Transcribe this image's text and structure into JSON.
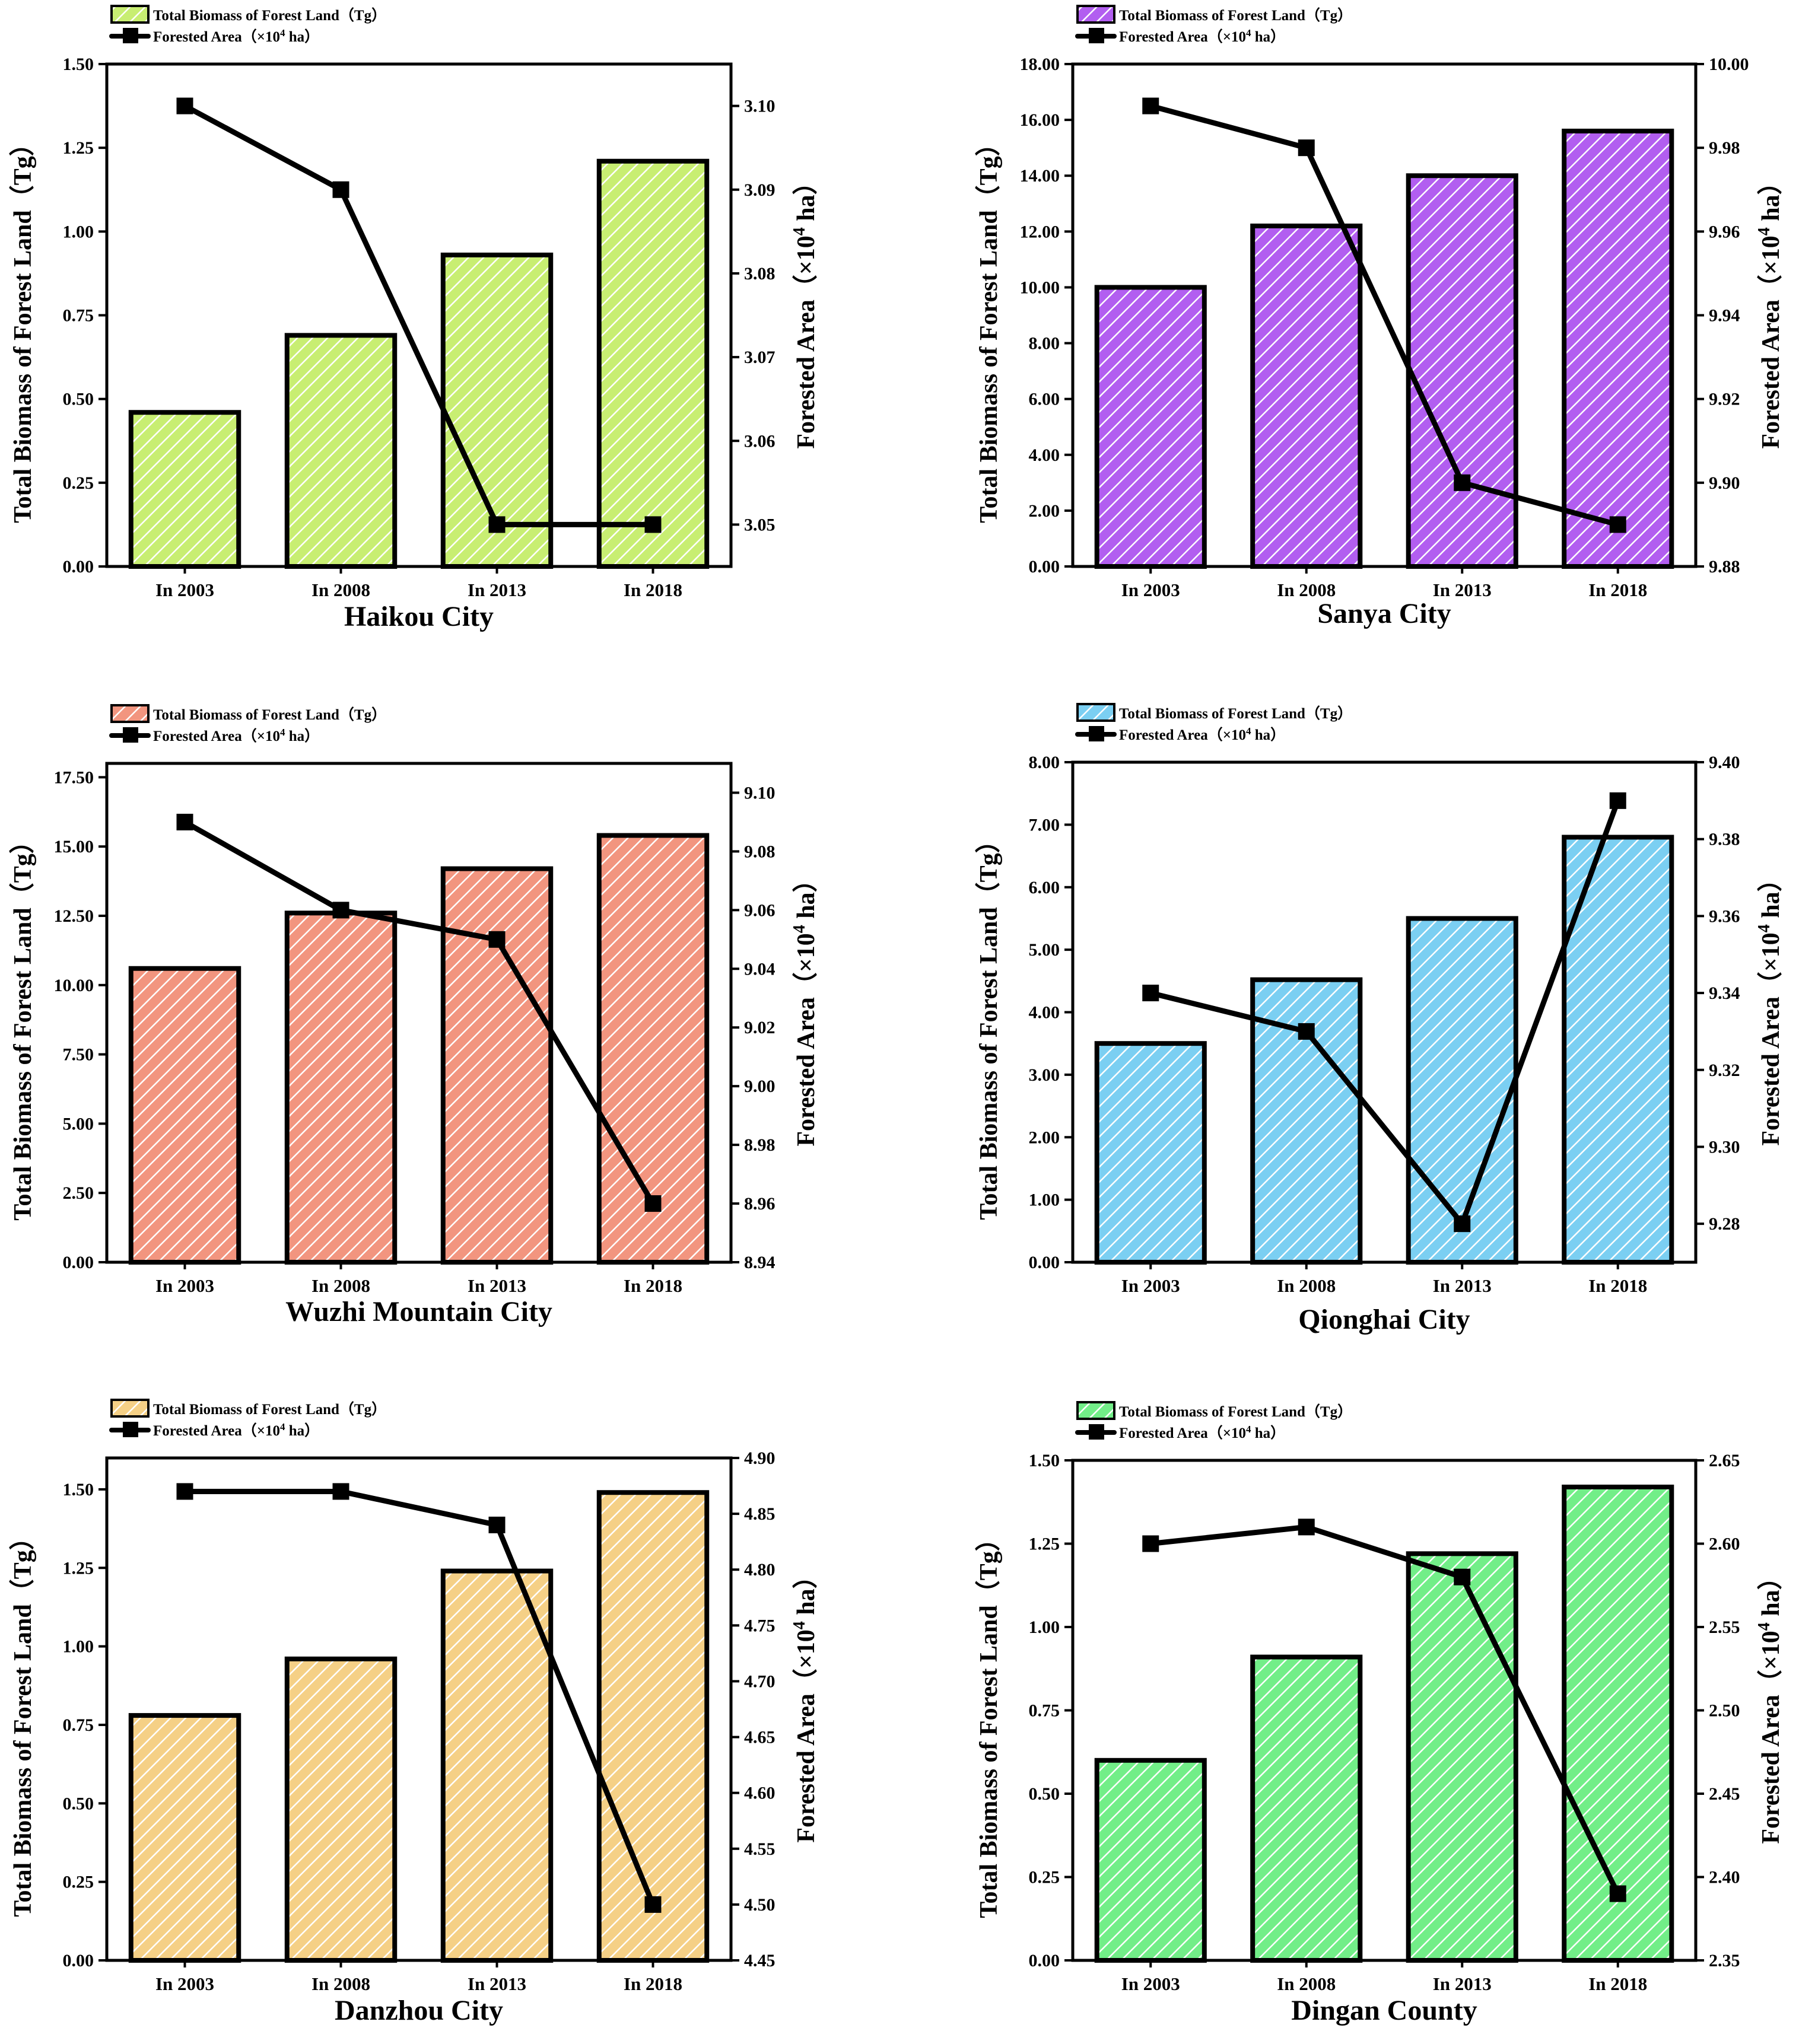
{
  "chart_data": [
    {
      "type": "bar+line",
      "title": "Haikou City",
      "categories": [
        "In 2003",
        "In 2008",
        "In 2013",
        "In 2018"
      ],
      "series": [
        {
          "name": "Total Biomass of Forest Land（Tg）",
          "kind": "bar",
          "axis": "left",
          "values": [
            0.46,
            0.69,
            0.93,
            1.21
          ]
        },
        {
          "name_prefix": "Forested Area（×10",
          "name_sup": "4",
          "name_suffix": " ha）",
          "kind": "line",
          "axis": "right",
          "values": [
            3.1,
            3.09,
            3.05,
            3.05
          ]
        }
      ],
      "ylabel": "Total Biomass of Forest Land（Tg）",
      "y2label_prefix": "Forested Area（×10",
      "y2label_sup": "4",
      "y2label_suffix": " ha）",
      "ylim": [
        0,
        1.5
      ],
      "yticks": [
        "0.00",
        "0.25",
        "0.50",
        "0.75",
        "1.00",
        "1.25",
        "1.50"
      ],
      "y2lim": [
        3.045,
        3.105
      ],
      "y2ticks": [
        "3.05",
        "3.06",
        "3.07",
        "3.08",
        "3.09",
        "3.10"
      ],
      "color": "#c8ee72",
      "legend": "top-left"
    },
    {
      "type": "bar+line",
      "title": "Sanya City",
      "categories": [
        "In 2003",
        "In 2008",
        "In 2013",
        "In 2018"
      ],
      "series": [
        {
          "name": "Total Biomass of Forest Land（Tg）",
          "kind": "bar",
          "axis": "left",
          "values": [
            10.0,
            12.2,
            14.0,
            15.6
          ]
        },
        {
          "name_prefix": "Forested Area（×10",
          "name_sup": "4",
          "name_suffix": " ha）",
          "kind": "line",
          "axis": "right",
          "values": [
            9.99,
            9.98,
            9.9,
            9.89
          ]
        }
      ],
      "ylabel": "Total Biomass of Forest Land（Tg）",
      "y2label_prefix": "Forested Area（×10",
      "y2label_sup": "4",
      "y2label_suffix": " ha）",
      "ylim": [
        0,
        18
      ],
      "yticks": [
        "0.00",
        "2.00",
        "4.00",
        "6.00",
        "8.00",
        "10.00",
        "12.00",
        "14.00",
        "16.00",
        "18.00"
      ],
      "y2lim": [
        9.88,
        10.0
      ],
      "y2ticks": [
        "9.88",
        "9.90",
        "9.92",
        "9.94",
        "9.96",
        "9.98",
        "10.00"
      ],
      "color": "#b25ef0",
      "legend": "top-left"
    },
    {
      "type": "bar+line",
      "title": "Wuzhi Mountain City",
      "categories": [
        "In 2003",
        "In 2008",
        "In 2013",
        "In 2018"
      ],
      "series": [
        {
          "name": "Total Biomass of Forest Land（Tg）",
          "kind": "bar",
          "axis": "left",
          "values": [
            10.6,
            12.6,
            14.2,
            15.4
          ]
        },
        {
          "name_prefix": "Forested Area（×10",
          "name_sup": "4",
          "name_suffix": " ha）",
          "kind": "line",
          "axis": "right",
          "values": [
            9.09,
            9.06,
            9.05,
            8.96
          ]
        }
      ],
      "ylabel": "Total Biomass of Forest Land（Tg）",
      "y2label_prefix": "Forested Area（×10",
      "y2label_sup": "4",
      "y2label_suffix": " ha）",
      "ylim": [
        0,
        18
      ],
      "yticks": [
        "0.00",
        "2.50",
        "5.00",
        "7.50",
        "10.00",
        "12.50",
        "15.00",
        "17.50"
      ],
      "y2lim": [
        8.94,
        9.11
      ],
      "y2ticks": [
        "8.94",
        "8.96",
        "8.98",
        "9.00",
        "9.02",
        "9.04",
        "9.06",
        "9.08",
        "9.10"
      ],
      "color": "#f2957f",
      "legend": "top-left"
    },
    {
      "type": "bar+line",
      "title": "Qionghai City",
      "categories": [
        "In 2003",
        "In 2008",
        "In 2013",
        "In 2018"
      ],
      "series": [
        {
          "name": "Total Biomass of Forest Land（Tg）",
          "kind": "bar",
          "axis": "left",
          "values": [
            3.5,
            4.52,
            5.5,
            6.8
          ]
        },
        {
          "name_prefix": "Forested Area（×10",
          "name_sup": "4",
          "name_suffix": " ha）",
          "kind": "line",
          "axis": "right",
          "values": [
            9.34,
            9.33,
            9.28,
            9.39
          ]
        }
      ],
      "ylabel": "Total Biomass of Forest Land（Tg）",
      "y2label_prefix": "Forested Area（×10",
      "y2label_sup": "4",
      "y2label_suffix": " ha）",
      "ylim": [
        0,
        8
      ],
      "yticks": [
        "0.00",
        "1.00",
        "2.00",
        "3.00",
        "4.00",
        "5.00",
        "6.00",
        "7.00",
        "8.00"
      ],
      "y2lim": [
        9.27,
        9.4
      ],
      "y2ticks": [
        "9.28",
        "9.30",
        "9.32",
        "9.34",
        "9.36",
        "9.38",
        "9.40"
      ],
      "color": "#7bcff2",
      "legend": "top-left"
    },
    {
      "type": "bar+line",
      "title": "Danzhou City",
      "categories": [
        "In 2003",
        "In 2008",
        "In 2013",
        "In 2018"
      ],
      "series": [
        {
          "name": "Total Biomass of Forest Land（Tg）",
          "kind": "bar",
          "axis": "left",
          "values": [
            0.78,
            0.96,
            1.24,
            1.49
          ]
        },
        {
          "name_prefix": "Forested Area（×10",
          "name_sup": "4",
          "name_suffix": " ha）",
          "kind": "line",
          "axis": "right",
          "values": [
            4.87,
            4.87,
            4.84,
            4.5
          ]
        }
      ],
      "ylabel": "Total Biomass of Forest Land（Tg）",
      "y2label_prefix": "Forested Area（×10",
      "y2label_sup": "4",
      "y2label_suffix": " ha）",
      "ylim": [
        0,
        1.6
      ],
      "yticks": [
        "0.00",
        "0.25",
        "0.50",
        "0.75",
        "1.00",
        "1.25",
        "1.50"
      ],
      "y2lim": [
        4.45,
        4.9
      ],
      "y2ticks": [
        "4.45",
        "4.50",
        "4.55",
        "4.60",
        "4.65",
        "4.70",
        "4.75",
        "4.80",
        "4.85",
        "4.90"
      ],
      "color": "#f5d086",
      "legend": "top-left"
    },
    {
      "type": "bar+line",
      "title": "Dingan County",
      "categories": [
        "In 2003",
        "In 2008",
        "In 2013",
        "In 2018"
      ],
      "series": [
        {
          "name": "Total Biomass of Forest Land（Tg）",
          "kind": "bar",
          "axis": "left",
          "values": [
            0.6,
            0.91,
            1.22,
            1.42
          ]
        },
        {
          "name_prefix": "Forested Area（×10",
          "name_sup": "4",
          "name_suffix": " ha）",
          "kind": "line",
          "axis": "right",
          "values": [
            2.6,
            2.61,
            2.58,
            2.39
          ]
        }
      ],
      "ylabel": "Total Biomass of Forest Land（Tg）",
      "y2label_prefix": "Forested Area（×10",
      "y2label_sup": "4",
      "y2label_suffix": " ha）",
      "ylim": [
        0,
        1.5
      ],
      "yticks": [
        "0.00",
        "0.25",
        "0.50",
        "0.75",
        "1.00",
        "1.25",
        "1.50"
      ],
      "y2lim": [
        2.35,
        2.65
      ],
      "y2ticks": [
        "2.35",
        "2.40",
        "2.45",
        "2.50",
        "2.55",
        "2.60",
        "2.65"
      ],
      "color": "#72ee88",
      "legend": "top-left"
    }
  ]
}
